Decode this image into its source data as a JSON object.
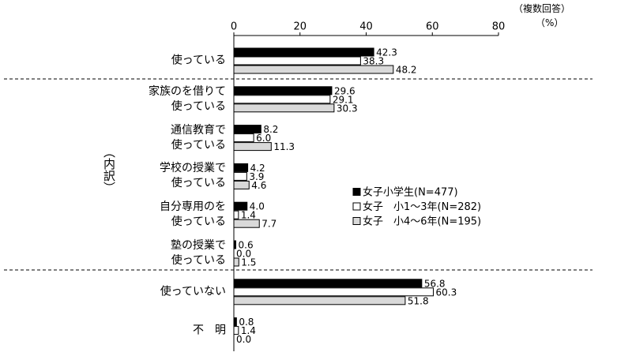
{
  "chart_data": {
    "type": "bar",
    "orientation": "horizontal",
    "annotations": [
      "（複数回答）",
      "（%）"
    ],
    "side_label": "（内訳）",
    "categories": [
      "使っている",
      "家族のを借りて\n使っている",
      "通信教育で\n使っている",
      "学校の授業で\n使っている",
      "自分専用のを\n使っている",
      "塾の授業で\n使っている",
      "使っていない",
      "不　明"
    ],
    "series": [
      {
        "name": "女子小学生(N=477)",
        "color": "#000000",
        "values": [
          42.3,
          29.6,
          8.2,
          4.2,
          4.0,
          0.6,
          56.8,
          0.8
        ],
        "value_labels": [
          "42.3",
          "29.6",
          "8.2",
          "4.2",
          "4.0",
          "0.6",
          "56.8",
          "0.8"
        ]
      },
      {
        "name": "女子　小1～3年(N=282)",
        "color": "#ffffff",
        "values": [
          38.3,
          29.1,
          6.0,
          3.9,
          1.4,
          0.0,
          60.3,
          1.4
        ],
        "value_labels": [
          "38.3",
          "29.1",
          "6.0",
          "3.9",
          "1.4",
          "0.0",
          "60.3",
          "1.4"
        ]
      },
      {
        "name": "女子　小4～6年(N=195)",
        "color": "#d9d9d9",
        "values": [
          48.2,
          30.3,
          11.3,
          4.6,
          7.7,
          1.5,
          51.8,
          0.0
        ],
        "value_labels": [
          "48.2",
          "30.3",
          "11.3",
          "4.6",
          "7.7",
          "1.5",
          "51.8",
          "0.0"
        ]
      }
    ],
    "xlim": [
      0,
      80
    ],
    "xticks": [
      0,
      20,
      40,
      60,
      80
    ]
  }
}
